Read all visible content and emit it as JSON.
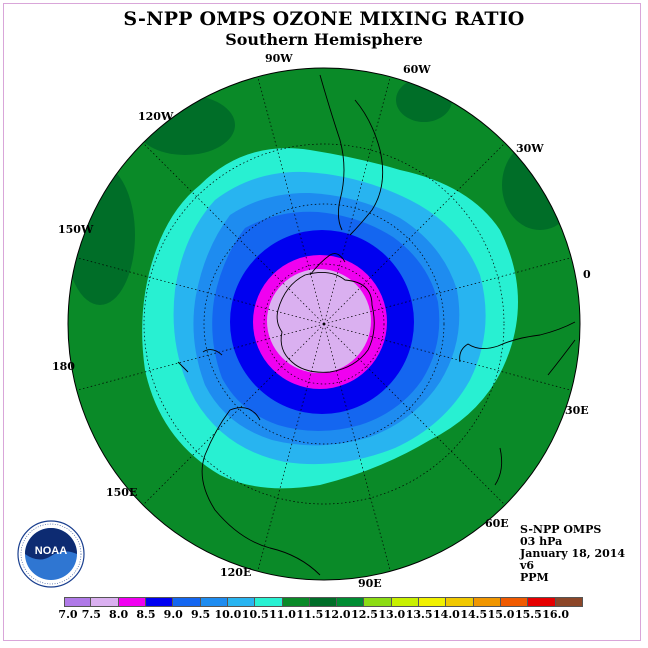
{
  "title": "S-NPP OMPS OZONE MIXING RATIO",
  "subtitle": "Southern Hemisphere",
  "longitude_labels": {
    "w90": "90W",
    "w60": "60W",
    "w120": "120W",
    "w30": "30W",
    "w150": "150W",
    "zero": "0",
    "d180": "180",
    "e30": "30E",
    "e150": "150E",
    "e60": "60E",
    "e120": "120E",
    "e90": "90E"
  },
  "info": {
    "instrument": "S-NPP OMPS",
    "level": "03 hPa",
    "date": "January 18, 2014",
    "version": "v6",
    "unit": "PPM"
  },
  "logo": {
    "text": "NOAA",
    "icon": "noaa-logo-icon"
  },
  "colorbar": {
    "ticks": [
      "7.0",
      "7.5",
      "8.0",
      "8.5",
      "9.0",
      "9.5",
      "10.0",
      "10.5",
      "11.0",
      "11.5",
      "12.0",
      "12.5",
      "13.0",
      "13.5",
      "14.0",
      "14.5",
      "15.0",
      "15.5",
      "16.0"
    ],
    "colors": [
      "#b07ae8",
      "#dab0f0",
      "#f000f0",
      "#0000f0",
      "#1466f0",
      "#1e8cf0",
      "#28b4f0",
      "#28f0d2",
      "#0a8a28",
      "#006e28",
      "#008c32",
      "#8cdc14",
      "#c8f000",
      "#f0f000",
      "#f0c800",
      "#f09600",
      "#f05a00",
      "#e60000",
      "#8c4628"
    ]
  },
  "map_colors": {
    "ppm_7_5": "#dab0f0",
    "ppm_8_0": "#f000f0",
    "ppm_8_5": "#0000f0",
    "ppm_9_0": "#1466f0",
    "ppm_9_5": "#1e8cf0",
    "ppm_10_0": "#28b4f0",
    "ppm_10_5": "#28f0d2",
    "ppm_11_0": "#0a8a28",
    "ppm_11_5": "#006e28"
  }
}
